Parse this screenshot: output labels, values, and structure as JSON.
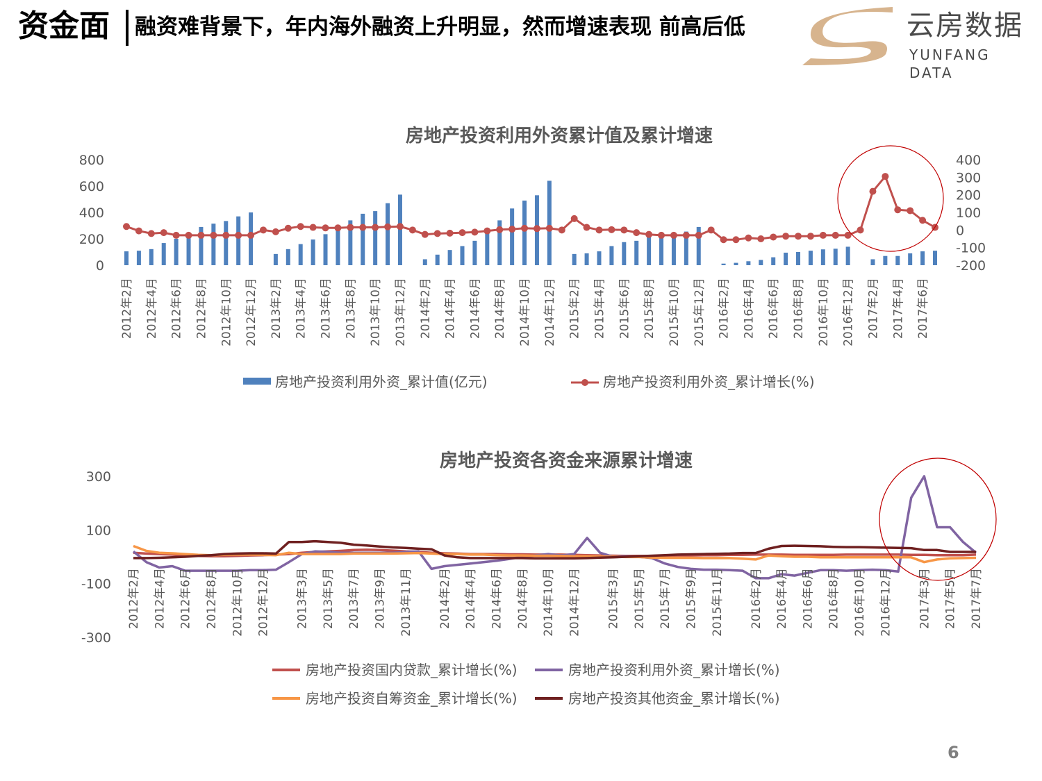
{
  "header": {
    "section_title": "资金面",
    "slide_title": "融资难背景下，年内海外融资上升明显，然而增速表现 前高后低",
    "logo_cn": "云房数据",
    "logo_en": "YUNFANG DATA"
  },
  "colors": {
    "bar_blue": "#4f81bd",
    "line_red": "#c0504d",
    "domestic_loan": "#c0504d",
    "foreign": "#8064a2",
    "self_raised": "#f79646",
    "other": "#6f2020",
    "highlight_circle": "#c00000"
  },
  "page_number": "6",
  "chart_data": [
    {
      "type": "bar+line",
      "title": "房地产投资利用外资累计值及累计增速",
      "x": [
        "2012年2月",
        "2012年3月",
        "2012年4月",
        "2012年5月",
        "2012年6月",
        "2012年7月",
        "2012年8月",
        "2012年9月",
        "2012年10月",
        "2012年11月",
        "2012年12月",
        "2013年1月",
        "2013年2月",
        "2013年3月",
        "2013年4月",
        "2013年5月",
        "2013年6月",
        "2013年7月",
        "2013年8月",
        "2013年9月",
        "2013年10月",
        "2013年11月",
        "2013年12月",
        "2014年1月",
        "2014年2月",
        "2014年3月",
        "2014年4月",
        "2014年5月",
        "2014年6月",
        "2014年7月",
        "2014年8月",
        "2014年9月",
        "2014年10月",
        "2014年11月",
        "2014年12月",
        "2015年1月",
        "2015年2月",
        "2015年3月",
        "2015年4月",
        "2015年5月",
        "2015年6月",
        "2015年7月",
        "2015年8月",
        "2015年9月",
        "2015年10月",
        "2015年11月",
        "2015年12月",
        "2016年1月",
        "2016年2月",
        "2016年3月",
        "2016年4月",
        "2016年5月",
        "2016年6月",
        "2016年7月",
        "2016年8月",
        "2016年9月",
        "2016年10月",
        "2016年11月",
        "2016年12月",
        "2017年1月",
        "2017年2月",
        "2017年3月",
        "2017年4月",
        "2017年5月",
        "2017年6月",
        "2017年7月"
      ],
      "x_tick_labels": [
        "2012年2月",
        "2012年4月",
        "2012年6月",
        "2012年8月",
        "2012年10月",
        "2012年12月",
        "2013年2月",
        "2013年4月",
        "2013年6月",
        "2013年8月",
        "2013年10月",
        "2013年12月",
        "2014年2月",
        "2014年4月",
        "2014年6月",
        "2014年8月",
        "2014年10月",
        "2014年12月",
        "2015年2月",
        "2015年4月",
        "2015年6月",
        "2015年8月",
        "2015年10月",
        "2015年12月",
        "2016年2月",
        "2016年4月",
        "2016年6月",
        "2016年8月",
        "2016年10月",
        "2016年12月",
        "2017年2月",
        "2017年4月",
        "2017年6月"
      ],
      "bar_series": {
        "name": "房地产投资利用外资_累计值(亿元)",
        "values": [
          105,
          110,
          122,
          168,
          200,
          215,
          290,
          315,
          335,
          370,
          400,
          null,
          85,
          122,
          160,
          195,
          235,
          290,
          340,
          390,
          410,
          470,
          535,
          null,
          45,
          80,
          115,
          145,
          185,
          245,
          340,
          430,
          490,
          530,
          640,
          null,
          85,
          90,
          105,
          145,
          175,
          185,
          215,
          225,
          240,
          255,
          290,
          null,
          12,
          18,
          30,
          40,
          60,
          95,
          100,
          110,
          120,
          125,
          140,
          null,
          45,
          70,
          70,
          90,
          105,
          110
        ]
      },
      "line_series": {
        "name": "房地产投资利用外资_累计增长(%)",
        "values": [
          20,
          -5,
          -20,
          -15,
          -30,
          -30,
          -30,
          -30,
          -30,
          -30,
          -30,
          0,
          -10,
          10,
          20,
          15,
          12,
          12,
          15,
          15,
          15,
          18,
          20,
          0,
          -25,
          -20,
          -18,
          -15,
          -12,
          -5,
          2,
          5,
          10,
          8,
          10,
          0,
          65,
          15,
          0,
          2,
          0,
          -15,
          -25,
          -30,
          -30,
          -30,
          -30,
          0,
          -55,
          -55,
          -45,
          -50,
          -40,
          -35,
          -35,
          -35,
          -30,
          -30,
          -30,
          0,
          220,
          305,
          115,
          110,
          55,
          15
        ]
      },
      "y_left": {
        "min": 0,
        "max": 800,
        "ticks": [
          0,
          200,
          400,
          600,
          800
        ]
      },
      "y_right": {
        "min": -200,
        "max": 400,
        "ticks": [
          -200,
          -100,
          0,
          100,
          200,
          300,
          400
        ]
      },
      "legend": [
        "房地产投资利用外资_累计值(亿元)",
        "房地产投资利用外资_累计增长(%)"
      ],
      "legend_position": "bottom"
    },
    {
      "type": "line",
      "title": "房地产投资各资金来源累计增速",
      "x": [
        "2012年2月",
        "2012年3月",
        "2012年4月",
        "2012年5月",
        "2012年6月",
        "2012年7月",
        "2012年8月",
        "2012年9月",
        "2012年10月",
        "2012年11月",
        "2012年12月",
        "2013年1月",
        "2013年2月",
        "2013年3月",
        "2013年4月",
        "2013年5月",
        "2013年6月",
        "2013年7月",
        "2013年8月",
        "2013年9月",
        "2013年10月",
        "2013年11月",
        "2013年12月",
        "2014年1月",
        "2014年2月",
        "2014年3月",
        "2014年4月",
        "2014年5月",
        "2014年6月",
        "2014年7月",
        "2014年8月",
        "2014年9月",
        "2014年10月",
        "2014年11月",
        "2014年12月",
        "2015年1月",
        "2015年2月",
        "2015年3月",
        "2015年4月",
        "2015年5月",
        "2015年6月",
        "2015年7月",
        "2015年8月",
        "2015年9月",
        "2015年10月",
        "2015年11月",
        "2015年12月",
        "2016年1月",
        "2016年2月",
        "2016年3月",
        "2016年4月",
        "2016年5月",
        "2016年6月",
        "2016年7月",
        "2016年8月",
        "2016年9月",
        "2016年10月",
        "2016年11月",
        "2016年12月",
        "2017年1月",
        "2017年2月",
        "2017年3月",
        "2017年4月",
        "2017年5月",
        "2017年6月",
        "2017年7月"
      ],
      "x_tick_labels": [
        "2012年2月",
        "2012年4月",
        "2012年6月",
        "2012年8月",
        "2012年10月",
        "2012年12月",
        "2013年3月",
        "2013年5月",
        "2013年7月",
        "2013年9月",
        "2013年11月",
        "2014年2月",
        "2014年4月",
        "2014年6月",
        "2014年8月",
        "2014年10月",
        "2014年12月",
        "2015年3月",
        "2015年5月",
        "2015年7月",
        "2015年9月",
        "2015年11月",
        "2016年2月",
        "2016年4月",
        "2016年6月",
        "2016年8月",
        "2016年10月",
        "2016年12月",
        "2017年3月",
        "2017年5月",
        "2017年7月"
      ],
      "series": [
        {
          "name": "房地产投资国内贷款_累计增长(%)",
          "values": [
            15,
            12,
            10,
            8,
            5,
            3,
            2,
            2,
            3,
            5,
            6,
            8,
            10,
            15,
            18,
            20,
            22,
            25,
            26,
            25,
            23,
            20,
            18,
            15,
            13,
            12,
            10,
            10,
            10,
            9,
            9,
            8,
            8,
            8,
            7,
            6,
            5,
            4,
            3,
            3,
            3,
            4,
            5,
            5,
            6,
            6,
            7,
            7,
            8,
            8,
            8,
            7,
            7,
            7,
            7,
            8,
            8,
            8,
            8,
            8,
            7,
            7,
            6,
            6,
            6,
            8
          ]
        },
        {
          "name": "房地产投资利用外资_累计增长(%)",
          "values": [
            20,
            -20,
            -40,
            -35,
            -52,
            -52,
            -52,
            -52,
            -52,
            -50,
            -50,
            -48,
            -20,
            10,
            20,
            18,
            15,
            15,
            15,
            15,
            15,
            18,
            20,
            -45,
            -35,
            -30,
            -25,
            -20,
            -15,
            -8,
            0,
            5,
            10,
            5,
            10,
            70,
            15,
            0,
            2,
            0,
            -5,
            -25,
            -38,
            -45,
            -48,
            -48,
            -50,
            -52,
            -80,
            -80,
            -65,
            -70,
            -60,
            -50,
            -50,
            -52,
            -50,
            -48,
            -50,
            -55,
            220,
            300,
            110,
            110,
            55,
            15
          ]
        },
        {
          "name": "房地产投资自筹资金_累计增长(%)",
          "values": [
            40,
            22,
            15,
            13,
            10,
            7,
            6,
            7,
            8,
            8,
            7,
            6,
            15,
            10,
            10,
            10,
            10,
            12,
            12,
            12,
            12,
            13,
            14,
            12,
            10,
            10,
            8,
            8,
            6,
            5,
            5,
            4,
            4,
            3,
            2,
            2,
            1,
            0,
            -1,
            -1,
            -3,
            -4,
            -4,
            -4,
            -5,
            -5,
            -5,
            -7,
            -10,
            5,
            2,
            0,
            0,
            -2,
            -2,
            -2,
            -2,
            -2,
            -2,
            -2,
            -2,
            -20,
            -10,
            -6,
            -5,
            -4
          ]
        },
        {
          "name": "房地产投资其他资金_累计增长(%)",
          "values": [
            -5,
            -5,
            -4,
            -2,
            0,
            3,
            6,
            10,
            12,
            13,
            13,
            12,
            55,
            55,
            58,
            55,
            52,
            45,
            42,
            38,
            35,
            33,
            30,
            28,
            5,
            -2,
            -5,
            -5,
            -5,
            -5,
            -5,
            -6,
            -6,
            -6,
            -6,
            -5,
            -3,
            -2,
            0,
            2,
            4,
            6,
            8,
            9,
            10,
            11,
            12,
            14,
            14,
            30,
            40,
            41,
            40,
            39,
            37,
            36,
            36,
            35,
            34,
            33,
            32,
            25,
            25,
            18,
            18,
            18
          ]
        }
      ],
      "y_range": [
        -300,
        300
      ],
      "y_ticks": [
        -300,
        -100,
        100,
        300
      ],
      "legend": [
        "房地产投资国内贷款_累计增长(%)",
        "房地产投资利用外资_累计增长(%)",
        "房地产投资自筹资金_累计增长(%)",
        "房地产投资其他资金_累计增长(%)"
      ],
      "legend_position": "bottom"
    }
  ]
}
